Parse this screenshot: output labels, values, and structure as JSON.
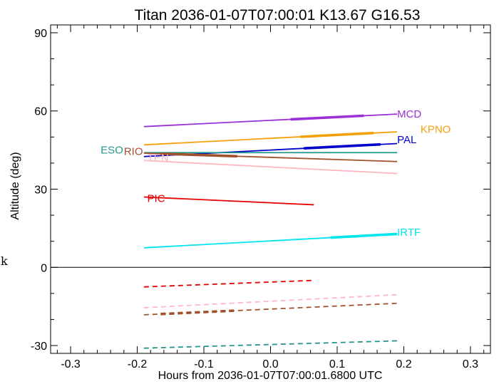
{
  "chart_data": {
    "type": "line",
    "title": "Titan 2036-01-07T07:00:01  K13.67  G16.53",
    "xlabel": "Hours from 2036-01-07T07:00:01.6800 UTC",
    "ylabel": "Altitude (deg)",
    "xlim": [
      -0.33,
      0.33
    ],
    "ylim": [
      -33,
      93
    ],
    "x_ticks": [
      -0.3,
      -0.2,
      -0.1,
      0.0,
      0.1,
      0.2,
      0.3
    ],
    "x_tick_labels": [
      "-0.3",
      "-0.2",
      "-0.1",
      "0.0",
      "0.1",
      "0.2",
      "0.3"
    ],
    "y_ticks": [
      -30,
      0,
      30,
      60,
      90
    ],
    "y_tick_labels": [
      "-30",
      "0",
      "30",
      "60",
      "90"
    ],
    "grid": false,
    "horizontal_line_at": 0,
    "stray_text": "k",
    "series": [
      {
        "name": "MCD",
        "color": "#9b30d9",
        "style": "solid",
        "x": [
          -0.19,
          0.19
        ],
        "y": [
          54.0,
          58.8
        ],
        "highlight_x": [
          0.03,
          0.14
        ],
        "label_anchor": [
          0.19,
          58.8
        ]
      },
      {
        "name": "KPNO",
        "color": "#f5a00a",
        "style": "solid",
        "x": [
          -0.19,
          0.19
        ],
        "y": [
          47.0,
          52.0
        ],
        "highlight_x": [
          0.045,
          0.155
        ],
        "label_anchor": [
          0.225,
          53.0
        ]
      },
      {
        "name": "PAL",
        "color": "#0000cc",
        "style": "solid",
        "x": [
          -0.19,
          0.19
        ],
        "y": [
          42.5,
          47.5
        ],
        "highlight_x": [
          0.05,
          0.165
        ],
        "label_anchor": [
          0.19,
          49.0
        ]
      },
      {
        "name": "ESO",
        "color": "#23968c",
        "style": "solid",
        "x": [
          -0.19,
          0.19
        ],
        "y": [
          44.0,
          44.0
        ],
        "highlight_x": [],
        "label_anchor": [
          -0.255,
          45.0
        ]
      },
      {
        "name": "RIO",
        "color": "#a0522d",
        "style": "solid",
        "x": [
          -0.19,
          0.19
        ],
        "y": [
          43.8,
          40.6
        ],
        "highlight_x": [
          -0.165,
          -0.05
        ],
        "label_anchor": [
          -0.22,
          44.5
        ]
      },
      {
        "name": "TEN",
        "color": "#ffb6c1",
        "style": "solid",
        "x": [
          -0.19,
          0.19
        ],
        "y": [
          41.0,
          36.0
        ],
        "highlight_x": [],
        "label_anchor": [
          -0.185,
          42.0
        ]
      },
      {
        "name": "PIC",
        "color": "#e60000",
        "style": "solid",
        "x": [
          -0.19,
          0.065
        ],
        "y": [
          27.0,
          24.0
        ],
        "highlight_x": [],
        "label_anchor": [
          -0.185,
          26.5
        ]
      },
      {
        "name": "IRTF",
        "color": "#00e5ee",
        "style": "solid",
        "x": [
          -0.19,
          0.19
        ],
        "y": [
          7.5,
          12.8
        ],
        "highlight_x": [
          0.09,
          0.19
        ],
        "label_anchor": [
          0.19,
          13.5
        ]
      },
      {
        "name": "",
        "color": "#e60000",
        "style": "dashed",
        "x": [
          -0.19,
          0.065
        ],
        "y": [
          -7.5,
          -5.0
        ],
        "highlight_x": []
      },
      {
        "name": "",
        "color": "#ffb6c1",
        "style": "dashed",
        "x": [
          -0.19,
          0.19
        ],
        "y": [
          -15.5,
          -10.5
        ],
        "highlight_x": []
      },
      {
        "name": "",
        "color": "#a0522d",
        "style": "dashed",
        "x": [
          -0.19,
          0.19
        ],
        "y": [
          -18.2,
          -13.8
        ],
        "highlight_x": [
          -0.165,
          -0.05
        ]
      },
      {
        "name": "",
        "color": "#23968c",
        "style": "dashed",
        "x": [
          -0.19,
          0.19
        ],
        "y": [
          -31.0,
          -28.2
        ],
        "highlight_x": []
      }
    ]
  }
}
